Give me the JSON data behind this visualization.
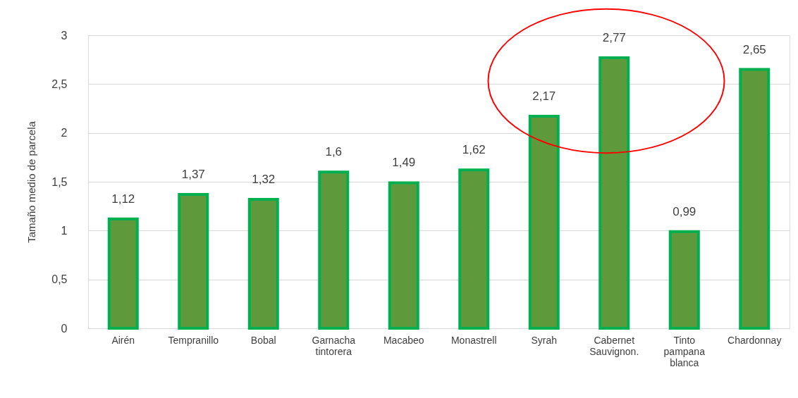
{
  "chart_data": {
    "type": "bar",
    "ylabel": "Tamaño medio de parcela",
    "categories": [
      "Airén",
      "Tempranillo",
      "Bobal",
      "Garnacha tintorera",
      "Macabeo",
      "Monastrell",
      "Syrah",
      "Cabernet Sauvignon.",
      "Tinto pampana blanca",
      "Chardonnay"
    ],
    "values": [
      1.12,
      1.37,
      1.32,
      1.6,
      1.49,
      1.62,
      2.17,
      2.77,
      0.99,
      2.65
    ],
    "value_labels": [
      "1,12",
      "1,37",
      "1,32",
      "1,6",
      "1,49",
      "1,62",
      "2,17",
      "2,77",
      "0,99",
      "2,65"
    ],
    "color": "#5e9a3b",
    "ylim": [
      0,
      3
    ],
    "yticks": [
      0,
      {
        "value": 0.5,
        "label": "0,5"
      },
      1,
      {
        "value": 1.5,
        "label": "1,5"
      },
      2,
      {
        "value": 2.5,
        "label": "2,5"
      },
      3
    ],
    "grid": "y"
  }
}
